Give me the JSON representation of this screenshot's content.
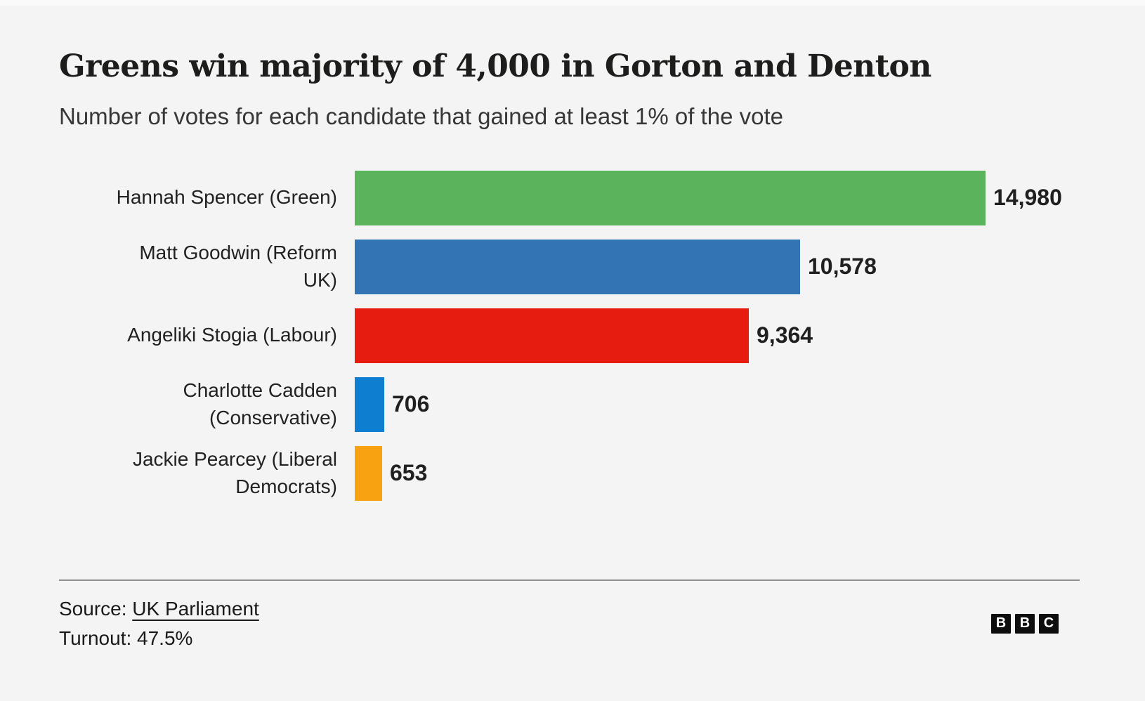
{
  "page": {
    "background": "#f5f4f4"
  },
  "header": {
    "title": "Greens win majority of 4,000 in Gorton and Denton",
    "subtitle": "Number of votes for each candidate that gained at least 1% of the vote"
  },
  "chart_data": {
    "type": "bar",
    "orientation": "horizontal",
    "title": "Greens win majority of 4,000 in Gorton and Denton",
    "subtitle": "Number of votes for each candidate that gained at least 1% of the vote",
    "categories": [
      "Hannah Spencer (Green)",
      "Matt Goodwin (Reform UK)",
      "Angeliki Stogia (Labour)",
      "Charlotte Cadden (Conservative)",
      "Jackie Pearcey (Liberal Democrats)"
    ],
    "label_lines": [
      "Hannah Spencer (Green)",
      "Matt Goodwin (Reform\nUK)",
      "Angeliki Stogia (Labour)",
      "Charlotte Cadden\n(Conservative)",
      "Jackie Pearcey (Liberal\nDemocrats)"
    ],
    "parties": [
      "Green",
      "Reform UK",
      "Labour",
      "Conservative",
      "Liberal Democrats"
    ],
    "values": [
      14980,
      10578,
      9364,
      706,
      653
    ],
    "value_labels": [
      "14,980",
      "10,578",
      "9,364",
      "706",
      "653"
    ],
    "bar_colors": [
      "#5bb45c",
      "#3274b4",
      "#e61c0e",
      "#0e7fd0",
      "#f9a211"
    ],
    "xlim": [
      0,
      14980
    ],
    "grid": false,
    "legend": false
  },
  "footer": {
    "source_prefix": "Source: ",
    "source_link": "UK Parliament",
    "turnout": "Turnout: 47.5%",
    "logo_letters": [
      "B",
      "B",
      "C"
    ]
  }
}
